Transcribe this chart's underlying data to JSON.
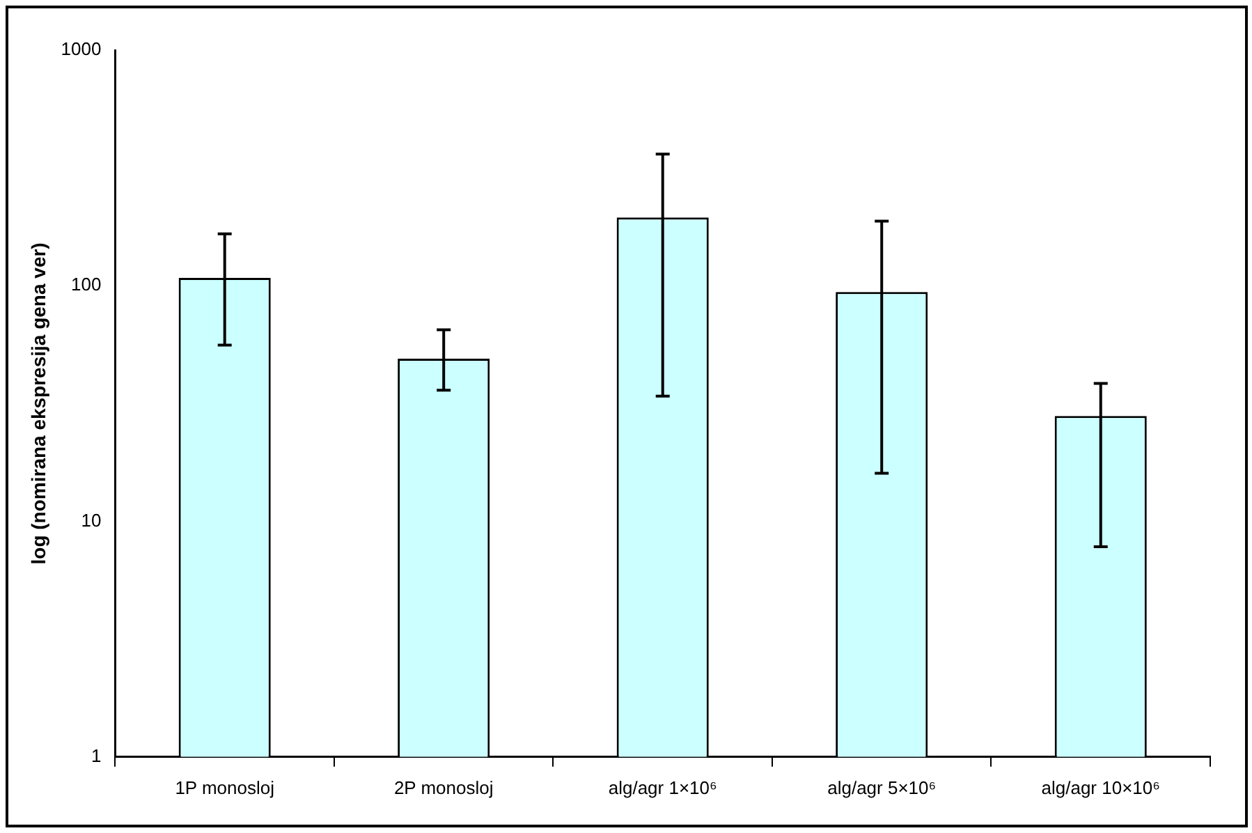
{
  "chart_data": {
    "type": "bar",
    "ylabel": "log (nomirana ekspresija gena ver)",
    "categories": [
      "1P monosloj",
      "2P monosloj",
      "alg/agr 1×10⁶",
      "alg/agr 5×10⁶",
      "alg/agr 10×10⁶"
    ],
    "values": [
      108,
      49,
      195,
      94,
      28
    ],
    "errors": [
      [
        56,
        166
      ],
      [
        36,
        65
      ],
      [
        34,
        362
      ],
      [
        16,
        188
      ],
      [
        7.8,
        38.5
      ]
    ],
    "color": "#ccffff",
    "log": true,
    "ylim": [
      1,
      1000
    ],
    "yticks": [
      1,
      10,
      100,
      1000
    ],
    "grid": false,
    "legend": false
  }
}
